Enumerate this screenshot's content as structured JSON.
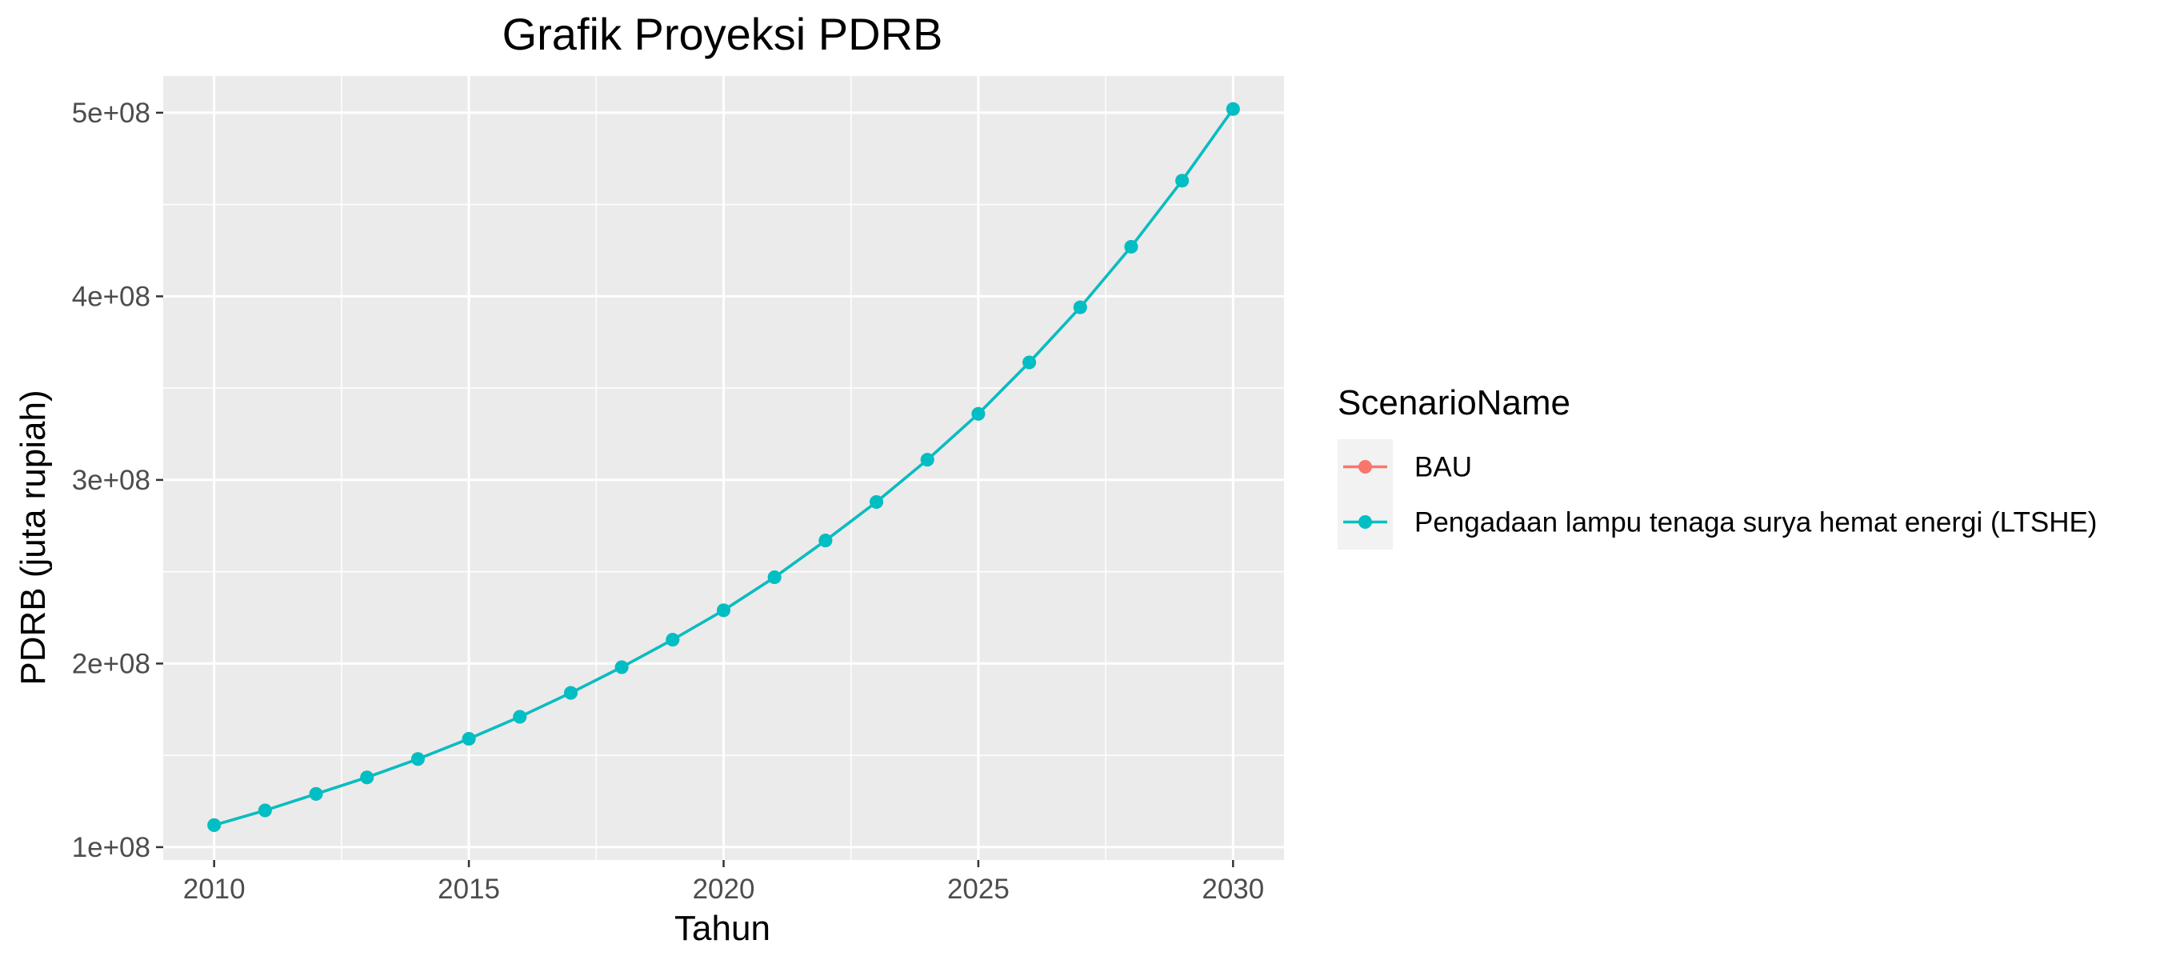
{
  "chart_data": {
    "type": "line",
    "title": "Grafik Proyeksi PDRB",
    "xlabel": "Tahun",
    "ylabel": "PDRB (juta rupiah)",
    "xlim": [
      2009,
      2031
    ],
    "ylim": [
      93000000,
      520000000
    ],
    "x_ticks": [
      2010,
      2015,
      2020,
      2025,
      2030
    ],
    "x_tick_labels": [
      "2010",
      "2015",
      "2020",
      "2025",
      "2030"
    ],
    "y_ticks": [
      100000000,
      200000000,
      300000000,
      400000000,
      500000000
    ],
    "y_tick_labels": [
      "1e+08",
      "2e+08",
      "3e+08",
      "4e+08",
      "5e+08"
    ],
    "grid": true,
    "legend": {
      "title": "ScenarioName",
      "placement": "right",
      "entries": [
        "BAU",
        "Pengadaan lampu tenaga surya hemat energi (LTSHE)"
      ]
    },
    "x": [
      2010,
      2011,
      2012,
      2013,
      2014,
      2015,
      2016,
      2017,
      2018,
      2019,
      2020,
      2021,
      2022,
      2023,
      2024,
      2025,
      2026,
      2027,
      2028,
      2029,
      2030
    ],
    "series": [
      {
        "name": "BAU",
        "color": "#F8766D",
        "values": [
          112000000,
          120000000,
          129000000,
          138000000,
          148000000,
          159000000,
          171000000,
          184000000,
          198000000,
          213000000,
          229000000,
          247000000,
          267000000,
          288000000,
          311000000,
          336000000,
          364000000,
          394000000,
          427000000,
          463000000,
          502000000
        ]
      },
      {
        "name": "Pengadaan lampu tenaga surya hemat energi (LTSHE)",
        "color": "#00BFC4",
        "values": [
          112000000,
          120000000,
          129000000,
          138000000,
          148000000,
          159000000,
          171000000,
          184000000,
          198000000,
          213000000,
          229000000,
          247000000,
          267000000,
          288000000,
          311000000,
          336000000,
          364000000,
          394000000,
          427000000,
          463000000,
          502000000
        ]
      }
    ]
  }
}
